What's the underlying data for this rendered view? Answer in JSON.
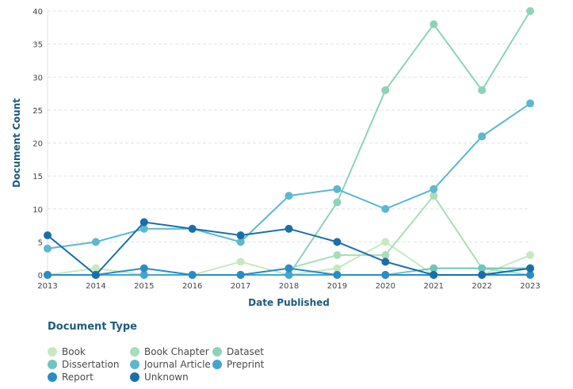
{
  "chart_data": {
    "type": "line",
    "xlabel": "Date Published",
    "ylabel": "Document Count",
    "x": [
      2013,
      2014,
      2015,
      2016,
      2017,
      2018,
      2019,
      2020,
      2021,
      2022,
      2023
    ],
    "ylim": [
      0,
      40
    ],
    "yticks": [
      0,
      5,
      10,
      15,
      20,
      25,
      30,
      35,
      40
    ],
    "grid": true,
    "legend_title": "Document Type",
    "legend_placement": "bottom",
    "series": [
      {
        "name": "Book",
        "color": "#c7e9c0",
        "values": [
          0,
          1,
          0,
          0,
          2,
          0,
          1,
          5,
          0,
          0,
          3
        ]
      },
      {
        "name": "Book Chapter",
        "color": "#a8dfb8",
        "values": [
          0,
          0,
          0,
          0,
          0,
          1,
          3,
          3,
          12,
          1,
          0
        ]
      },
      {
        "name": "Dataset",
        "color": "#8dd3b8",
        "values": [
          0,
          0,
          0,
          0,
          0,
          0,
          11,
          28,
          38,
          28,
          40
        ]
      },
      {
        "name": "Dissertation",
        "color": "#6cc5c0",
        "values": [
          0,
          0,
          0,
          0,
          0,
          0,
          0,
          0,
          1,
          1,
          1
        ]
      },
      {
        "name": "Journal Article",
        "color": "#5bb8cf",
        "values": [
          4,
          5,
          7,
          7,
          5,
          12,
          13,
          10,
          13,
          21,
          26
        ]
      },
      {
        "name": "Preprint",
        "color": "#44a5d0",
        "values": [
          0,
          0,
          0,
          0,
          0,
          0,
          0,
          0,
          0,
          0,
          1
        ]
      },
      {
        "name": "Report",
        "color": "#2b8cc4",
        "values": [
          0,
          0,
          1,
          0,
          0,
          1,
          0,
          0,
          0,
          0,
          0
        ]
      },
      {
        "name": "Unknown",
        "color": "#1a6fa8",
        "values": [
          6,
          0,
          8,
          7,
          6,
          7,
          5,
          2,
          0,
          0,
          1
        ]
      }
    ]
  }
}
